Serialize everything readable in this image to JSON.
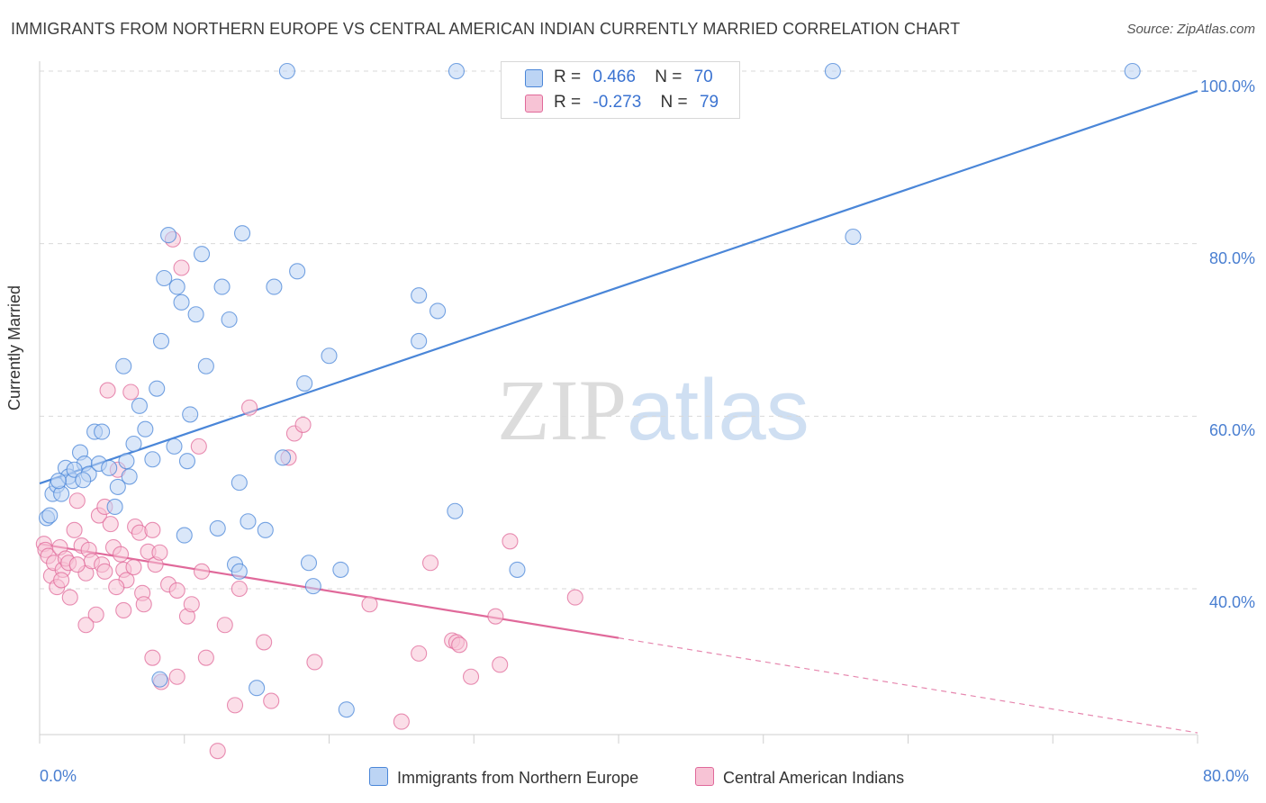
{
  "header": {
    "title": "IMMIGRANTS FROM NORTHERN EUROPE VS CENTRAL AMERICAN INDIAN CURRENTLY MARRIED CORRELATION CHART",
    "source": "Source: ZipAtlas.com"
  },
  "watermark": "ZIPatlas",
  "colors": {
    "blue": "#4a86d8",
    "blue_fill": "#bcd4f4",
    "pink": "#e0699a",
    "pink_fill": "#f7c3d5",
    "tick_label": "#4a7fd1",
    "grid": "#d9d9d9"
  },
  "legend": {
    "blue": {
      "r_label": "R =",
      "r_value": "0.466",
      "n_label": "N =",
      "n_value": "70"
    },
    "pink": {
      "r_label": "R =",
      "r_value": "-0.273",
      "n_label": "N =",
      "n_value": "79"
    }
  },
  "chart_data": {
    "type": "scatter",
    "title": "IMMIGRANTS FROM NORTHERN EUROPE VS CENTRAL AMERICAN INDIAN CURRENTLY MARRIED CORRELATION CHART",
    "ylabel": "Currently Married",
    "xlabel": "",
    "xlim": [
      0,
      80
    ],
    "ylim": [
      20,
      102
    ],
    "x_tick_labels": [
      "0.0%",
      "80.0%"
    ],
    "y_tick_labels": [
      "40.0%",
      "60.0%",
      "80.0%",
      "100.0%"
    ],
    "y_ticks": [
      40,
      60,
      80,
      100
    ],
    "grid": true,
    "legend_position": "top-center",
    "series": [
      {
        "name": "Immigrants from Northern Europe",
        "color": "#4a86d8",
        "trend": {
          "x0": 0,
          "y0": 52.2,
          "x1": 80,
          "y1": 97.7
        },
        "points": [
          [
            0.5,
            48.2
          ],
          [
            0.7,
            48.5
          ],
          [
            0.9,
            51.0
          ],
          [
            1.2,
            52.0
          ],
          [
            1.5,
            51.0
          ],
          [
            1.8,
            54.0
          ],
          [
            2.0,
            53.0
          ],
          [
            2.3,
            52.5
          ],
          [
            2.8,
            55.8
          ],
          [
            3.1,
            54.5
          ],
          [
            3.4,
            53.3
          ],
          [
            3.8,
            58.2
          ],
          [
            4.1,
            54.5
          ],
          [
            4.3,
            58.2
          ],
          [
            5.2,
            49.5
          ],
          [
            5.8,
            65.8
          ],
          [
            6.0,
            54.8
          ],
          [
            6.2,
            53.0
          ],
          [
            6.5,
            56.8
          ],
          [
            6.9,
            61.2
          ],
          [
            7.3,
            58.5
          ],
          [
            7.8,
            55.0
          ],
          [
            8.1,
            63.2
          ],
          [
            8.4,
            68.7
          ],
          [
            8.6,
            76.0
          ],
          [
            8.9,
            81.0
          ],
          [
            9.3,
            56.5
          ],
          [
            9.5,
            75.0
          ],
          [
            9.8,
            73.2
          ],
          [
            10.2,
            54.8
          ],
          [
            10.4,
            60.2
          ],
          [
            10.8,
            71.8
          ],
          [
            11.2,
            78.8
          ],
          [
            11.5,
            65.8
          ],
          [
            12.3,
            47.0
          ],
          [
            12.6,
            75.0
          ],
          [
            13.1,
            71.2
          ],
          [
            13.8,
            52.3
          ],
          [
            14.0,
            81.2
          ],
          [
            14.4,
            47.8
          ],
          [
            15.6,
            46.8
          ],
          [
            16.2,
            75.0
          ],
          [
            16.8,
            55.2
          ],
          [
            17.1,
            100.0
          ],
          [
            17.8,
            76.8
          ],
          [
            18.3,
            63.8
          ],
          [
            18.6,
            43.0
          ],
          [
            18.9,
            40.3
          ],
          [
            20.0,
            67.0
          ],
          [
            20.8,
            42.2
          ],
          [
            21.2,
            26.0
          ],
          [
            26.2,
            74.0
          ],
          [
            26.2,
            68.7
          ],
          [
            27.5,
            72.2
          ],
          [
            28.7,
            49.0
          ],
          [
            28.8,
            100.0
          ],
          [
            33.0,
            42.2
          ],
          [
            8.3,
            29.5
          ],
          [
            10.0,
            46.2
          ],
          [
            13.5,
            42.8
          ],
          [
            15.0,
            28.5
          ],
          [
            13.8,
            42.0
          ],
          [
            54.8,
            100.0
          ],
          [
            56.2,
            80.8
          ],
          [
            75.5,
            100.0
          ],
          [
            1.3,
            52.5
          ],
          [
            2.4,
            53.8
          ],
          [
            4.8,
            54.0
          ],
          [
            3.0,
            52.6
          ],
          [
            5.4,
            51.8
          ]
        ]
      },
      {
        "name": "Central American Indians",
        "color": "#e0699a",
        "trend": {
          "x0": 0,
          "y0": 45.2,
          "x1": 40,
          "y1": 34.3,
          "dash_to_x": 80,
          "dash_to_y": 23.3
        },
        "points": [
          [
            0.3,
            45.2
          ],
          [
            0.4,
            44.5
          ],
          [
            0.6,
            43.8
          ],
          [
            0.8,
            41.5
          ],
          [
            1.0,
            43.0
          ],
          [
            1.2,
            40.2
          ],
          [
            1.4,
            44.8
          ],
          [
            1.6,
            42.2
          ],
          [
            1.8,
            43.5
          ],
          [
            2.1,
            39.0
          ],
          [
            2.4,
            46.8
          ],
          [
            2.6,
            50.2
          ],
          [
            2.9,
            45.0
          ],
          [
            3.2,
            41.8
          ],
          [
            3.4,
            44.5
          ],
          [
            3.6,
            43.2
          ],
          [
            3.9,
            37.0
          ],
          [
            4.1,
            48.5
          ],
          [
            4.3,
            42.8
          ],
          [
            4.5,
            49.5
          ],
          [
            4.7,
            63.0
          ],
          [
            4.9,
            47.5
          ],
          [
            5.1,
            44.8
          ],
          [
            5.4,
            53.8
          ],
          [
            5.6,
            44.0
          ],
          [
            5.8,
            42.2
          ],
          [
            6.0,
            41.0
          ],
          [
            6.3,
            62.8
          ],
          [
            6.6,
            47.2
          ],
          [
            6.9,
            46.5
          ],
          [
            7.1,
            39.5
          ],
          [
            7.5,
            44.3
          ],
          [
            7.8,
            46.8
          ],
          [
            8.0,
            42.8
          ],
          [
            8.4,
            29.2
          ],
          [
            8.9,
            40.5
          ],
          [
            9.2,
            80.5
          ],
          [
            9.5,
            39.8
          ],
          [
            9.8,
            77.2
          ],
          [
            10.2,
            36.8
          ],
          [
            10.5,
            38.2
          ],
          [
            11.0,
            56.5
          ],
          [
            11.5,
            32.0
          ],
          [
            12.3,
            21.2
          ],
          [
            12.8,
            35.8
          ],
          [
            13.5,
            26.5
          ],
          [
            13.8,
            40.0
          ],
          [
            14.5,
            61.0
          ],
          [
            15.5,
            33.8
          ],
          [
            16.0,
            27.0
          ],
          [
            17.2,
            55.2
          ],
          [
            17.6,
            58.0
          ],
          [
            18.2,
            59.0
          ],
          [
            19.0,
            31.5
          ],
          [
            22.8,
            38.2
          ],
          [
            25.0,
            24.6
          ],
          [
            26.2,
            32.5
          ],
          [
            27.0,
            43.0
          ],
          [
            28.5,
            34.0
          ],
          [
            29.8,
            29.8
          ],
          [
            31.5,
            36.8
          ],
          [
            32.5,
            45.5
          ],
          [
            37.0,
            39.0
          ],
          [
            3.2,
            35.8
          ],
          [
            2.0,
            43.0
          ],
          [
            4.5,
            42.0
          ],
          [
            5.3,
            40.2
          ],
          [
            5.8,
            37.5
          ],
          [
            6.5,
            42.5
          ],
          [
            7.8,
            32.0
          ],
          [
            9.5,
            29.8
          ],
          [
            11.2,
            42.0
          ],
          [
            7.2,
            38.2
          ],
          [
            8.3,
            44.2
          ],
          [
            1.5,
            41.0
          ],
          [
            2.6,
            42.8
          ],
          [
            28.8,
            33.8
          ],
          [
            29.0,
            33.5
          ],
          [
            31.8,
            31.2
          ]
        ]
      }
    ]
  },
  "bottom_legend": {
    "blue_label": "Immigrants from Northern Europe",
    "pink_label": "Central American Indians"
  },
  "axes": {
    "ylabel": "Currently Married",
    "y_ticks": [
      "100.0%",
      "80.0%",
      "60.0%",
      "40.0%"
    ],
    "x_left": "0.0%",
    "x_right": "80.0%"
  }
}
